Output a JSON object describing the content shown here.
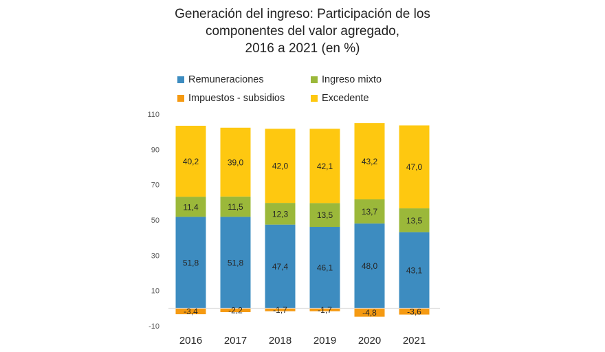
{
  "chart_data": {
    "type": "bar",
    "stacked": true,
    "title_lines": [
      "Generación del ingreso: Participación de los",
      "componentes del valor agregado,",
      "2016 a 2021 (en %)"
    ],
    "xlabel": "",
    "ylabel": "",
    "categories": [
      "2016",
      "2017",
      "2018",
      "2019",
      "2020",
      "2021"
    ],
    "ylim": [
      -10,
      110
    ],
    "yticks": [
      -10,
      10,
      30,
      50,
      70,
      90,
      110
    ],
    "grid": false,
    "zero_line": true,
    "legend_position": "top",
    "series": [
      {
        "name": "Remuneraciones",
        "color": "#3d8cc0",
        "values": [
          51.8,
          51.8,
          47.4,
          46.1,
          48.0,
          43.1
        ],
        "labels": [
          "51,8",
          "51,8",
          "47,4",
          "46,1",
          "48,0",
          "43,1"
        ]
      },
      {
        "name": "Ingreso mixto",
        "color": "#9bb83a",
        "values": [
          11.4,
          11.5,
          12.3,
          13.5,
          13.7,
          13.5
        ],
        "labels": [
          "11,4",
          "11,5",
          "12,3",
          "13,5",
          "13,7",
          "13,5"
        ]
      },
      {
        "name": "Excedente",
        "color": "#fec810",
        "values": [
          40.2,
          39.0,
          42.0,
          42.1,
          43.2,
          47.0
        ],
        "labels": [
          "40,2",
          "39,0",
          "42,0",
          "42,1",
          "43,2",
          "47,0"
        ]
      },
      {
        "name": "Impuestos - subsidios",
        "color": "#f59a12",
        "values": [
          -3.4,
          -2.2,
          -1.7,
          -1.7,
          -4.8,
          -3.6
        ],
        "labels": [
          "-3,4",
          "-2,2",
          "-1,7",
          "-1,7",
          "-4,8",
          "-3,6"
        ]
      }
    ],
    "legend_order": [
      "Remuneraciones",
      "Ingreso mixto",
      "Impuestos - subsidios",
      "Excedente"
    ]
  }
}
